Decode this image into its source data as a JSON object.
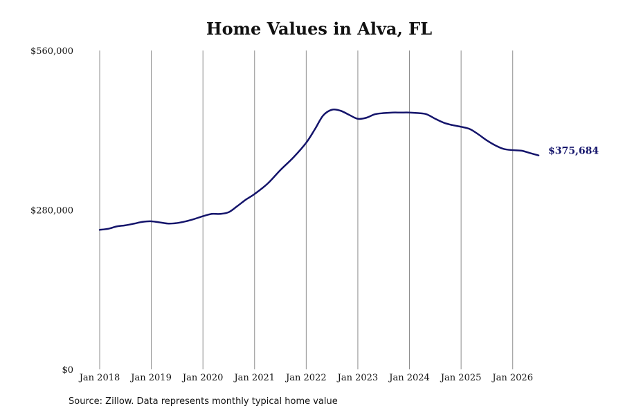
{
  "chart_data": {
    "type": "line",
    "title": "Home Values in Alva, FL",
    "xlabel": "",
    "ylabel": "",
    "ylim": [
      0,
      560000
    ],
    "yticks": [
      {
        "value": 0,
        "label": "$0"
      },
      {
        "value": 280000,
        "label": "$280,000"
      },
      {
        "value": 560000,
        "label": "$560,000"
      }
    ],
    "xticks": [
      {
        "value": 2018.0,
        "label": "Jan 2018"
      },
      {
        "value": 2019.0,
        "label": "Jan 2019"
      },
      {
        "value": 2020.0,
        "label": "Jan 2020"
      },
      {
        "value": 2021.0,
        "label": "Jan 2021"
      },
      {
        "value": 2022.0,
        "label": "Jan 2022"
      },
      {
        "value": 2023.0,
        "label": "Jan 2023"
      },
      {
        "value": 2024.0,
        "label": "Jan 2024"
      },
      {
        "value": 2025.0,
        "label": "Jan 2025"
      },
      {
        "value": 2026.0,
        "label": "Jan 2026"
      }
    ],
    "xlim": [
      2018.0,
      2026.5
    ],
    "grid": "vertical",
    "line_color": "#14146b",
    "series": [
      {
        "name": "",
        "x": [
          2018.0,
          2018.17,
          2018.33,
          2018.5,
          2018.67,
          2018.83,
          2019.0,
          2019.17,
          2019.33,
          2019.5,
          2019.67,
          2019.83,
          2020.0,
          2020.17,
          2020.33,
          2020.5,
          2020.67,
          2020.83,
          2021.0,
          2021.25,
          2021.5,
          2021.75,
          2022.0,
          2022.17,
          2022.33,
          2022.5,
          2022.67,
          2022.83,
          2023.0,
          2023.17,
          2023.33,
          2023.5,
          2023.67,
          2023.83,
          2024.0,
          2024.17,
          2024.33,
          2024.5,
          2024.67,
          2024.83,
          2025.0,
          2025.17,
          2025.33,
          2025.5,
          2025.67,
          2025.83,
          2026.0,
          2026.17,
          2026.33,
          2026.5
        ],
        "y": [
          245000,
          247000,
          251000,
          253000,
          256000,
          259000,
          260000,
          258000,
          256000,
          257000,
          260000,
          264000,
          269000,
          273000,
          273000,
          276000,
          287000,
          298000,
          308000,
          326000,
          350000,
          372000,
          398000,
          422000,
          446000,
          456000,
          454000,
          447000,
          440000,
          442000,
          448000,
          450000,
          451000,
          451000,
          451000,
          450000,
          448000,
          440000,
          433000,
          429000,
          426000,
          422000,
          413000,
          402000,
          393000,
          387000,
          385000,
          384000,
          380000,
          375684
        ]
      }
    ],
    "end_label": "$375,684"
  },
  "footer": {
    "source": "Source: Zillow. Data represents monthly typical home value"
  }
}
